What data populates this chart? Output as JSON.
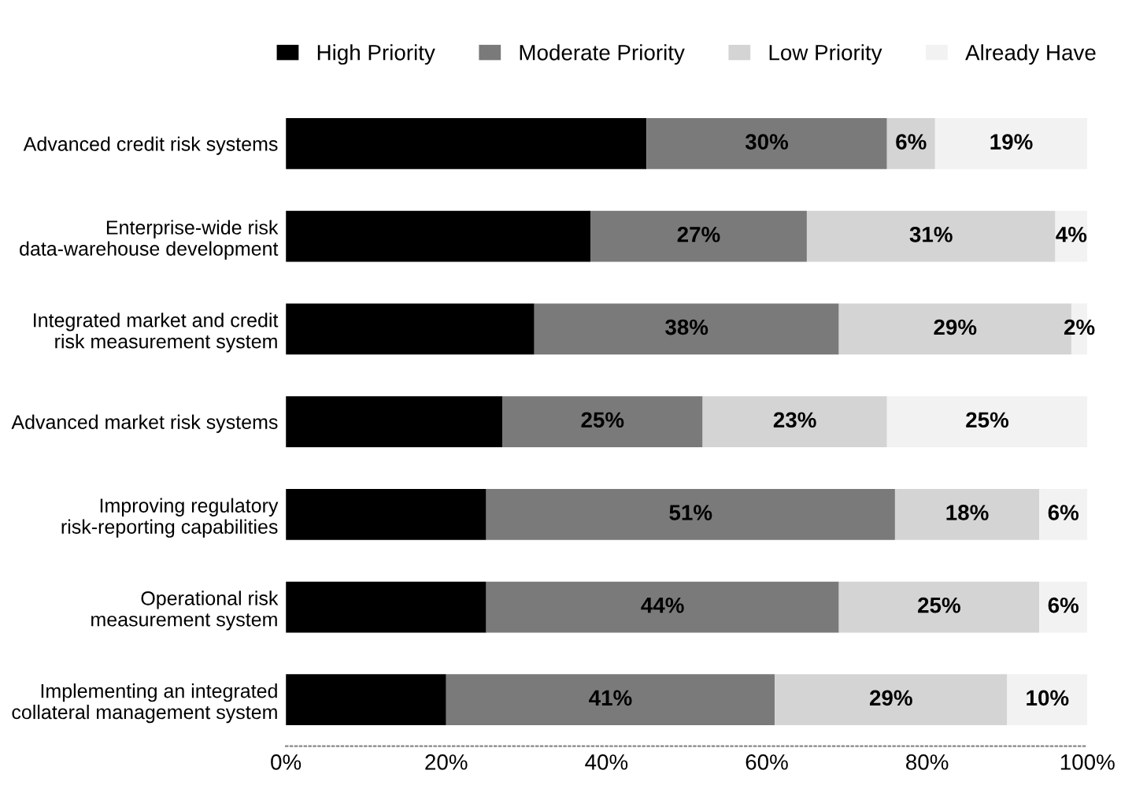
{
  "chart_data": {
    "type": "bar",
    "orientation": "horizontal",
    "stacked": true,
    "categories": [
      "Advanced credit risk systems",
      "Enterprise-wide risk\ndata-warehouse development",
      "Integrated market and credit\nrisk measurement system",
      "Advanced market risk systems",
      "Improving regulatory\nrisk-reporting capabilities",
      "Operational risk\nmeasurement system",
      "Implementing an integrated\ncollateral management system"
    ],
    "series": [
      {
        "name": "High Priority",
        "color": "#000000",
        "values": [
          45,
          38,
          31,
          27,
          25,
          25,
          20
        ]
      },
      {
        "name": "Moderate Priority",
        "color": "#7a7a7a",
        "values": [
          30,
          27,
          38,
          25,
          51,
          44,
          41
        ],
        "value_labels": [
          "30%",
          "27%",
          "38%",
          "25%",
          "51%",
          "44%",
          "41%"
        ]
      },
      {
        "name": "Low Priority",
        "color": "#d4d4d4",
        "values": [
          6,
          31,
          29,
          23,
          18,
          25,
          29
        ],
        "value_labels": [
          "6%",
          "31%",
          "29%",
          "23%",
          "18%",
          "25%",
          "29%"
        ]
      },
      {
        "name": "Already Have",
        "color": "#f2f2f2",
        "values": [
          19,
          4,
          2,
          25,
          6,
          6,
          10
        ],
        "value_labels": [
          "19%",
          "4%",
          "2%",
          "25%",
          "6%",
          "6%",
          "10%"
        ]
      }
    ],
    "xlim": [
      0,
      100
    ],
    "xticks": [
      {
        "value": 0,
        "label": "0%"
      },
      {
        "value": 20,
        "label": "20%"
      },
      {
        "value": 40,
        "label": "40%"
      },
      {
        "value": 60,
        "label": "60%"
      },
      {
        "value": 80,
        "label": "80%"
      },
      {
        "value": 100,
        "label": "100%"
      }
    ],
    "legend": "top",
    "grid": false
  }
}
